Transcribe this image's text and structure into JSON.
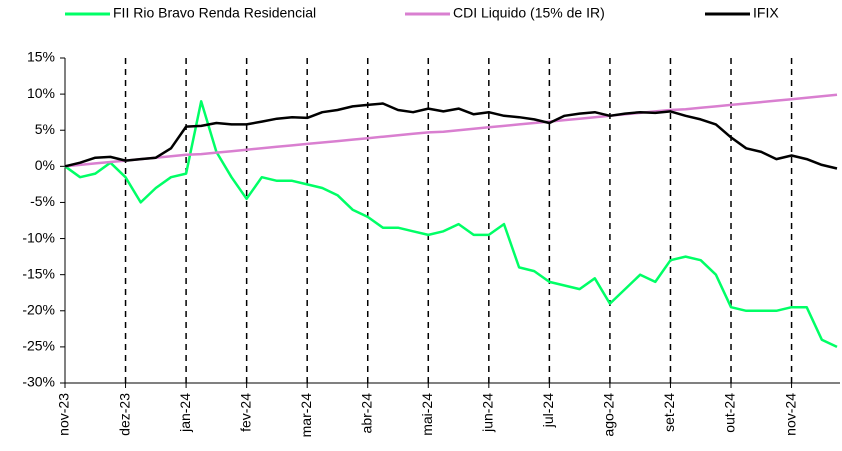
{
  "chart_data": {
    "type": "line",
    "x": [
      0,
      0.25,
      0.5,
      0.75,
      1,
      1.25,
      1.5,
      1.75,
      2,
      2.25,
      2.5,
      2.75,
      3,
      3.25,
      3.5,
      3.75,
      4,
      4.25,
      4.5,
      4.75,
      5,
      5.25,
      5.5,
      5.75,
      6,
      6.25,
      6.5,
      6.75,
      7,
      7.25,
      7.5,
      7.75,
      8,
      8.25,
      8.5,
      8.75,
      9,
      9.25,
      9.5,
      9.75,
      10,
      10.25,
      10.5,
      10.75,
      11,
      11.25,
      11.5,
      11.75,
      12,
      12.25,
      12.5,
      12.75
    ],
    "series": [
      {
        "name": "FII Rio Bravo Renda Residencial",
        "color": "#00ff66",
        "values": [
          0,
          -1.5,
          -1,
          0.5,
          -1.5,
          -5,
          -3,
          -1.5,
          -1,
          9,
          2,
          -1.5,
          -4.5,
          -1.5,
          -2,
          -2,
          -2.5,
          -3,
          -4,
          -6,
          -7,
          -8.5,
          -8.5,
          -9,
          -9.5,
          -9,
          -8,
          -9.5,
          -9.5,
          -8,
          -14,
          -14.5,
          -16,
          -16.5,
          -17,
          -15.5,
          -19,
          -17,
          -15,
          -16,
          -13,
          -12.5,
          -13,
          -15,
          -19.5,
          -20,
          -20,
          -20,
          -19.5,
          -19.5,
          -24,
          -25
        ]
      },
      {
        "name": "CDI Liquido (15% de IR)",
        "color": "#d97fd0",
        "values": [
          0,
          0.2,
          0.4,
          0.6,
          0.8,
          1.0,
          1.2,
          1.4,
          1.6,
          1.7,
          1.9,
          2.1,
          2.3,
          2.5,
          2.7,
          2.9,
          3.1,
          3.3,
          3.5,
          3.7,
          3.9,
          4.1,
          4.3,
          4.5,
          4.7,
          4.8,
          5.0,
          5.2,
          5.4,
          5.6,
          5.8,
          6.0,
          6.2,
          6.4,
          6.6,
          6.8,
          7.0,
          7.2,
          7.4,
          7.6,
          7.8,
          7.9,
          8.1,
          8.3,
          8.5,
          8.7,
          8.9,
          9.1,
          9.3,
          9.5,
          9.7,
          9.9
        ]
      },
      {
        "name": "IFIX",
        "color": "#000000",
        "values": [
          0,
          0.5,
          1.2,
          1.3,
          0.8,
          1,
          1.2,
          2.5,
          5.5,
          5.6,
          6,
          5.8,
          5.8,
          6.2,
          6.6,
          6.8,
          6.7,
          7.5,
          7.8,
          8.3,
          8.5,
          8.7,
          7.8,
          7.5,
          8,
          7.6,
          8,
          7.2,
          7.5,
          7,
          6.8,
          6.5,
          6,
          7,
          7.3,
          7.5,
          7,
          7.3,
          7.5,
          7.4,
          7.6,
          7,
          6.5,
          5.8,
          4,
          2.5,
          2,
          1,
          1.5,
          1,
          0.2,
          -0.3
        ]
      }
    ],
    "xlim": [
      0,
      12.8
    ],
    "xticks": [
      {
        "value": 0,
        "label": "nov-23"
      },
      {
        "value": 1,
        "label": "dez-23"
      },
      {
        "value": 2,
        "label": "jan-24"
      },
      {
        "value": 3,
        "label": "fev-24"
      },
      {
        "value": 4,
        "label": "mar-24"
      },
      {
        "value": 5,
        "label": "abr-24"
      },
      {
        "value": 6,
        "label": "mai-24"
      },
      {
        "value": 7,
        "label": "jun-24"
      },
      {
        "value": 8,
        "label": "jul-24"
      },
      {
        "value": 9,
        "label": "ago-24"
      },
      {
        "value": 10,
        "label": "set-24"
      },
      {
        "value": 11,
        "label": "out-24"
      },
      {
        "value": 12,
        "label": "nov-24"
      }
    ],
    "ylim": [
      -30,
      15
    ],
    "yticks": [
      {
        "value": -30,
        "label": "-30%"
      },
      {
        "value": -25,
        "label": "-25%"
      },
      {
        "value": -20,
        "label": "-20%"
      },
      {
        "value": -15,
        "label": "-15%"
      },
      {
        "value": -10,
        "label": "-10%"
      },
      {
        "value": -5,
        "label": "-5%"
      },
      {
        "value": 0,
        "label": "0%"
      },
      {
        "value": 5,
        "label": "5%"
      },
      {
        "value": 10,
        "label": "10%"
      },
      {
        "value": 15,
        "label": "15%"
      }
    ],
    "legend": "top"
  }
}
